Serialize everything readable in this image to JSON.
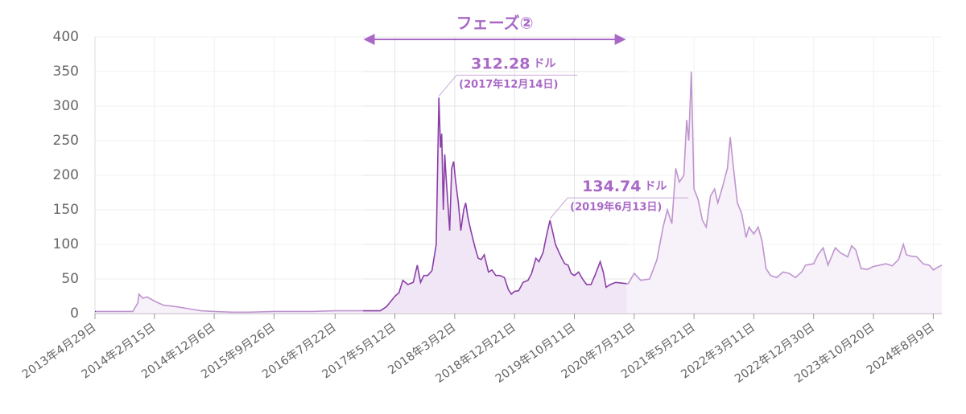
{
  "chart_data": {
    "type": "line",
    "xlim": [
      "2013-04-29",
      "2024-09-20"
    ],
    "ylim": [
      0,
      400
    ],
    "yticks": [
      0,
      50,
      100,
      150,
      200,
      250,
      300,
      350,
      400
    ],
    "grid": true,
    "xticks": [
      {
        "value": "2013-04-29",
        "label": "2013年4月29日"
      },
      {
        "value": "2014-02-15",
        "label": "2014年2月15日"
      },
      {
        "value": "2014-12-06",
        "label": "2014年12月6日"
      },
      {
        "value": "2015-09-26",
        "label": "2015年9月26日"
      },
      {
        "value": "2016-07-22",
        "label": "2016年7月22日"
      },
      {
        "value": "2017-05-12",
        "label": "2017年5月12日"
      },
      {
        "value": "2018-03-02",
        "label": "2018年3月2日"
      },
      {
        "value": "2018-12-21",
        "label": "2018年12月21日"
      },
      {
        "value": "2019-10-11",
        "label": "2019年10月11日"
      },
      {
        "value": "2020-07-31",
        "label": "2020年7月31日"
      },
      {
        "value": "2021-05-21",
        "label": "2021年5月21日"
      },
      {
        "value": "2022-03-11",
        "label": "2022年3月11日"
      },
      {
        "value": "2022-12-30",
        "label": "2022年12月30日"
      },
      {
        "value": "2023-10-20",
        "label": "2023年10月20日"
      },
      {
        "value": "2024-08-09",
        "label": "2024年8月9日"
      }
    ],
    "phase": {
      "label": "フェーズ②",
      "start": "2016-12-06",
      "end": "2020-06-23"
    },
    "annotations": [
      {
        "x": "2017-12-14",
        "value": 312.28,
        "unit": "ドル",
        "date": "(2017年12月14日)"
      },
      {
        "x": "2019-06-13",
        "value": 134.74,
        "unit": "ドル",
        "date": "(2019年6月13日)"
      }
    ],
    "color": "#8a3fa8",
    "fill": "#f1e6f5",
    "x": [
      "2013-04-29",
      "2013-08-01",
      "2013-11-01",
      "2013-11-25",
      "2013-12-01",
      "2013-12-20",
      "2014-01-10",
      "2014-02-15",
      "2014-04-01",
      "2014-06-01",
      "2014-08-01",
      "2014-10-01",
      "2014-12-06",
      "2015-03-01",
      "2015-06-01",
      "2015-09-26",
      "2016-01-01",
      "2016-04-01",
      "2016-07-22",
      "2016-10-01",
      "2016-12-15",
      "2017-03-01",
      "2017-04-01",
      "2017-05-12",
      "2017-06-01",
      "2017-06-20",
      "2017-07-15",
      "2017-08-10",
      "2017-08-30",
      "2017-09-15",
      "2017-10-01",
      "2017-10-20",
      "2017-11-10",
      "2017-12-01",
      "2017-12-14",
      "2017-12-22",
      "2017-12-28",
      "2018-01-05",
      "2018-01-12",
      "2018-01-18",
      "2018-02-05",
      "2018-02-15",
      "2018-02-25",
      "2018-03-05",
      "2018-03-20",
      "2018-04-01",
      "2018-04-15",
      "2018-04-25",
      "2018-05-05",
      "2018-05-20",
      "2018-06-10",
      "2018-06-25",
      "2018-07-10",
      "2018-07-25",
      "2018-08-15",
      "2018-09-01",
      "2018-09-20",
      "2018-10-10",
      "2018-11-01",
      "2018-11-20",
      "2018-12-05",
      "2018-12-21",
      "2019-01-10",
      "2019-02-01",
      "2019-02-25",
      "2019-03-15",
      "2019-04-05",
      "2019-04-20",
      "2019-05-10",
      "2019-05-25",
      "2019-06-13",
      "2019-06-25",
      "2019-07-10",
      "2019-07-25",
      "2019-08-10",
      "2019-08-25",
      "2019-09-10",
      "2019-09-25",
      "2019-10-11",
      "2019-11-01",
      "2019-11-20",
      "2019-12-10",
      "2020-01-01",
      "2020-01-20",
      "2020-02-15",
      "2020-03-01",
      "2020-03-15",
      "2020-04-05",
      "2020-05-01",
      "2020-06-01",
      "2020-07-01",
      "2020-07-31",
      "2020-09-01",
      "2020-10-15",
      "2020-11-20",
      "2020-12-20",
      "2021-01-10",
      "2021-02-01",
      "2021-02-20",
      "2021-03-10",
      "2021-04-01",
      "2021-04-15",
      "2021-04-25",
      "2021-05-08",
      "2021-05-21",
      "2021-06-10",
      "2021-07-01",
      "2021-07-20",
      "2021-08-10",
      "2021-08-30",
      "2021-09-15",
      "2021-10-10",
      "2021-11-01",
      "2021-11-15",
      "2021-12-01",
      "2021-12-20",
      "2022-01-10",
      "2022-02-01",
      "2022-02-15",
      "2022-03-11",
      "2022-04-01",
      "2022-04-20",
      "2022-05-10",
      "2022-06-01",
      "2022-07-01",
      "2022-08-01",
      "2022-09-01",
      "2022-10-01",
      "2022-11-01",
      "2022-11-20",
      "2022-12-30",
      "2023-01-20",
      "2023-02-15",
      "2023-03-10",
      "2023-04-15",
      "2023-05-10",
      "2023-06-15",
      "2023-07-05",
      "2023-07-25",
      "2023-08-20",
      "2023-09-20",
      "2023-10-20",
      "2023-11-20",
      "2023-12-20",
      "2024-01-20",
      "2024-02-20",
      "2024-03-15",
      "2024-03-30",
      "2024-04-20",
      "2024-05-20",
      "2024-06-20",
      "2024-07-20",
      "2024-08-09",
      "2024-08-30",
      "2024-09-20"
    ],
    "values": [
      3,
      3,
      3,
      15,
      28,
      22,
      24,
      18,
      12,
      10,
      7,
      4,
      3,
      2,
      2,
      3,
      3,
      3,
      4,
      4,
      4,
      4,
      10,
      25,
      30,
      48,
      42,
      45,
      70,
      45,
      55,
      55,
      62,
      100,
      312.28,
      240,
      260,
      150,
      230,
      200,
      120,
      210,
      220,
      195,
      160,
      120,
      150,
      160,
      140,
      120,
      95,
      80,
      78,
      85,
      60,
      63,
      55,
      55,
      52,
      35,
      28,
      32,
      33,
      45,
      48,
      58,
      80,
      75,
      88,
      110,
      134.74,
      120,
      100,
      90,
      80,
      72,
      70,
      58,
      55,
      60,
      50,
      42,
      42,
      55,
      75,
      60,
      38,
      42,
      45,
      44,
      43,
      58,
      48,
      50,
      78,
      125,
      150,
      130,
      210,
      190,
      200,
      280,
      250,
      350,
      180,
      165,
      135,
      125,
      170,
      180,
      160,
      185,
      210,
      255,
      210,
      160,
      145,
      110,
      125,
      115,
      125,
      105,
      65,
      55,
      52,
      60,
      58,
      52,
      60,
      70,
      72,
      85,
      95,
      70,
      95,
      88,
      82,
      98,
      92,
      65,
      64,
      68,
      70,
      72,
      69,
      78,
      100,
      85,
      83,
      82,
      72,
      70,
      63,
      67,
      70
    ]
  }
}
